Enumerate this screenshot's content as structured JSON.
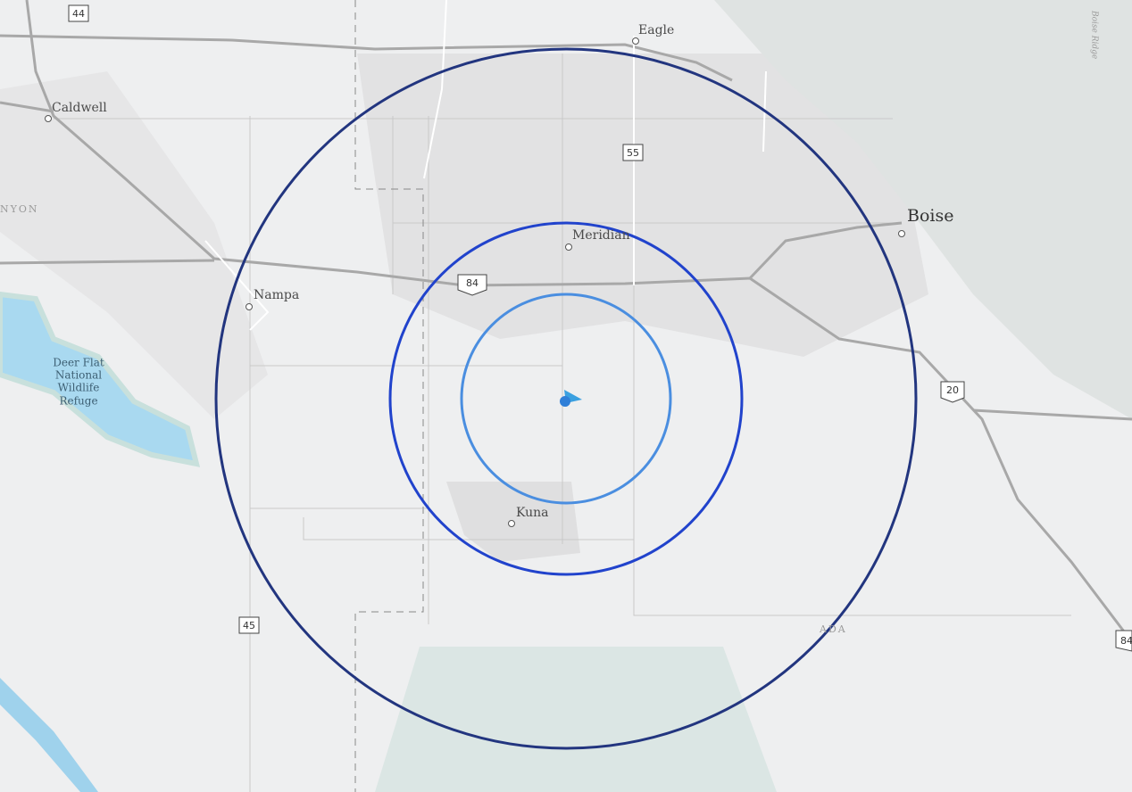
{
  "map": {
    "places": {
      "eagle": "Eagle",
      "caldwell": "Caldwell",
      "boise": "Boise",
      "meridian": "Meridian",
      "nampa": "Nampa",
      "kuna": "Kuna",
      "refuge": [
        "Deer Flat",
        "National",
        "Wildlife",
        "Refuge"
      ],
      "ridge": "Boise Ridge",
      "canyon": "NYON",
      "ada": "ADA"
    },
    "shields": [
      "44",
      "55",
      "84",
      "20",
      "45",
      "84"
    ]
  }
}
